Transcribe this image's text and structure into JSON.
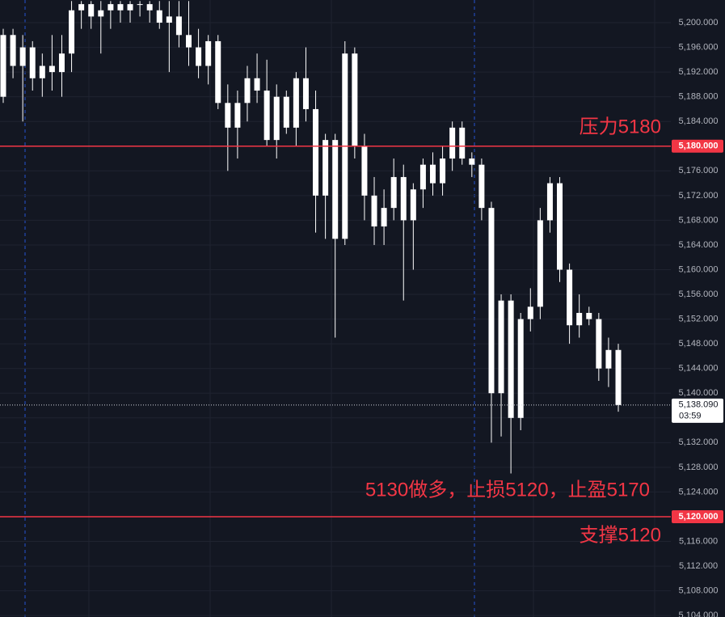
{
  "chart_data": {
    "type": "candlestick",
    "color": "#ffffff",
    "open": [
      5188,
      5198,
      5193,
      5196,
      5191,
      5193,
      5192,
      5195,
      5202,
      5203,
      5201,
      5202,
      5203,
      5202,
      5203,
      5203,
      5202,
      5200,
      5201,
      5198,
      5196,
      5193,
      5197,
      5187,
      5183,
      5187,
      5191,
      5189,
      5181,
      5188,
      5183,
      5191,
      5186,
      5172,
      5181,
      5165,
      5195,
      5180,
      5172,
      5167,
      5170,
      5175,
      5168,
      5173,
      5177,
      5174,
      5178,
      5183,
      5178,
      5177,
      5170,
      5140,
      5155,
      5136,
      5152,
      5154,
      5168,
      5174,
      5160,
      5151,
      5153,
      5152,
      5144,
      5147
    ],
    "high": [
      5199,
      5199,
      5198,
      5197,
      5195,
      5198,
      5198,
      5203.5,
      5203.5,
      5203.5,
      5203.5,
      5203.5,
      5203.5,
      5203.5,
      5203.5,
      5203.5,
      5203.5,
      5203.5,
      5203.5,
      5203.5,
      5199,
      5198,
      5198,
      5190,
      5189,
      5193,
      5195,
      5194,
      5190,
      5189,
      5192,
      5196,
      5189,
      5182,
      5182,
      5197,
      5196,
      5182,
      5175,
      5173,
      5178,
      5177,
      5174,
      5178,
      5179,
      5180,
      5184,
      5184,
      5179,
      5178,
      5171,
      5156,
      5156,
      5153,
      5157,
      5170,
      5175,
      5175,
      5161,
      5156,
      5154,
      5153,
      5149,
      5148
    ],
    "low": [
      5187,
      5191,
      5184,
      5189,
      5188,
      5189,
      5188,
      5192,
      5199,
      5199,
      5195,
      5199,
      5200,
      5200,
      5201,
      5200,
      5199,
      5192,
      5196,
      5193,
      5191,
      5190,
      5186,
      5176,
      5178,
      5184,
      5187,
      5180,
      5178,
      5182,
      5180,
      5184,
      5166,
      5165,
      5149,
      5164,
      5178,
      5168,
      5164,
      5164,
      5168,
      5155,
      5160,
      5170,
      5172,
      5172,
      5176,
      5177,
      5175,
      5168,
      5132,
      5133,
      5127,
      5134,
      5150,
      5152,
      5166,
      5158,
      5148,
      5149,
      5151,
      5142,
      5141,
      5137
    ],
    "close": [
      5198,
      5193,
      5196,
      5191,
      5193,
      5192,
      5195,
      5202,
      5203,
      5201,
      5202,
      5203,
      5202,
      5203,
      5203,
      5202,
      5200,
      5201,
      5198,
      5196,
      5193,
      5197,
      5187,
      5183,
      5187,
      5191,
      5189,
      5181,
      5188,
      5183,
      5191,
      5186,
      5172,
      5181,
      5165,
      5195,
      5180,
      5172,
      5167,
      5170,
      5175,
      5168,
      5173,
      5177,
      5174,
      5178,
      5183,
      5178,
      5177,
      5170,
      5140,
      5155,
      5136,
      5152,
      5154,
      5168,
      5174,
      5160,
      5151,
      5153,
      5152,
      5144,
      5147,
      5138.09
    ],
    "ylim": [
      5103.76,
      5203.67
    ],
    "yticks": [
      {
        "value": 5104,
        "label": "5,104.000"
      },
      {
        "value": 5108,
        "label": "5,108.000"
      },
      {
        "value": 5112,
        "label": "5,112.000"
      },
      {
        "value": 5116,
        "label": "5,116.000"
      },
      {
        "value": 5120,
        "label": "5,120.000"
      },
      {
        "value": 5124,
        "label": "5,124.000"
      },
      {
        "value": 5128,
        "label": "5,128.000"
      },
      {
        "value": 5132,
        "label": "5,132.000"
      },
      {
        "value": 5136,
        "label": "5,136.000"
      },
      {
        "value": 5140,
        "label": "5,140.000"
      },
      {
        "value": 5144,
        "label": "5,144.000"
      },
      {
        "value": 5148,
        "label": "5,148.000"
      },
      {
        "value": 5152,
        "label": "5,152.000"
      },
      {
        "value": 5156,
        "label": "5,156.000"
      },
      {
        "value": 5160,
        "label": "5,160.000"
      },
      {
        "value": 5164,
        "label": "5,164.000"
      },
      {
        "value": 5168,
        "label": "5,168.000"
      },
      {
        "value": 5172,
        "label": "5,172.000"
      },
      {
        "value": 5176,
        "label": "5,176.000"
      },
      {
        "value": 5180,
        "label": "5,180.000"
      },
      {
        "value": 5184,
        "label": "5,184.000"
      },
      {
        "value": 5188,
        "label": "5,188.000"
      },
      {
        "value": 5192,
        "label": "5,192.000"
      },
      {
        "value": 5196,
        "label": "5,196.000"
      },
      {
        "value": 5200,
        "label": "5,200.000"
      }
    ],
    "grid": true,
    "levels": [
      {
        "value": 5180,
        "label": "5,180.000",
        "color": "#f23645"
      },
      {
        "value": 5120,
        "label": "5,120.000",
        "color": "#f23645"
      }
    ],
    "last_price": {
      "value": 5138.09,
      "label": "5,138.090",
      "countdown": "03:59"
    },
    "annotations": [
      "压力5180",
      "支撑5120",
      "5130做多，止损5120，止盈5170"
    ]
  }
}
